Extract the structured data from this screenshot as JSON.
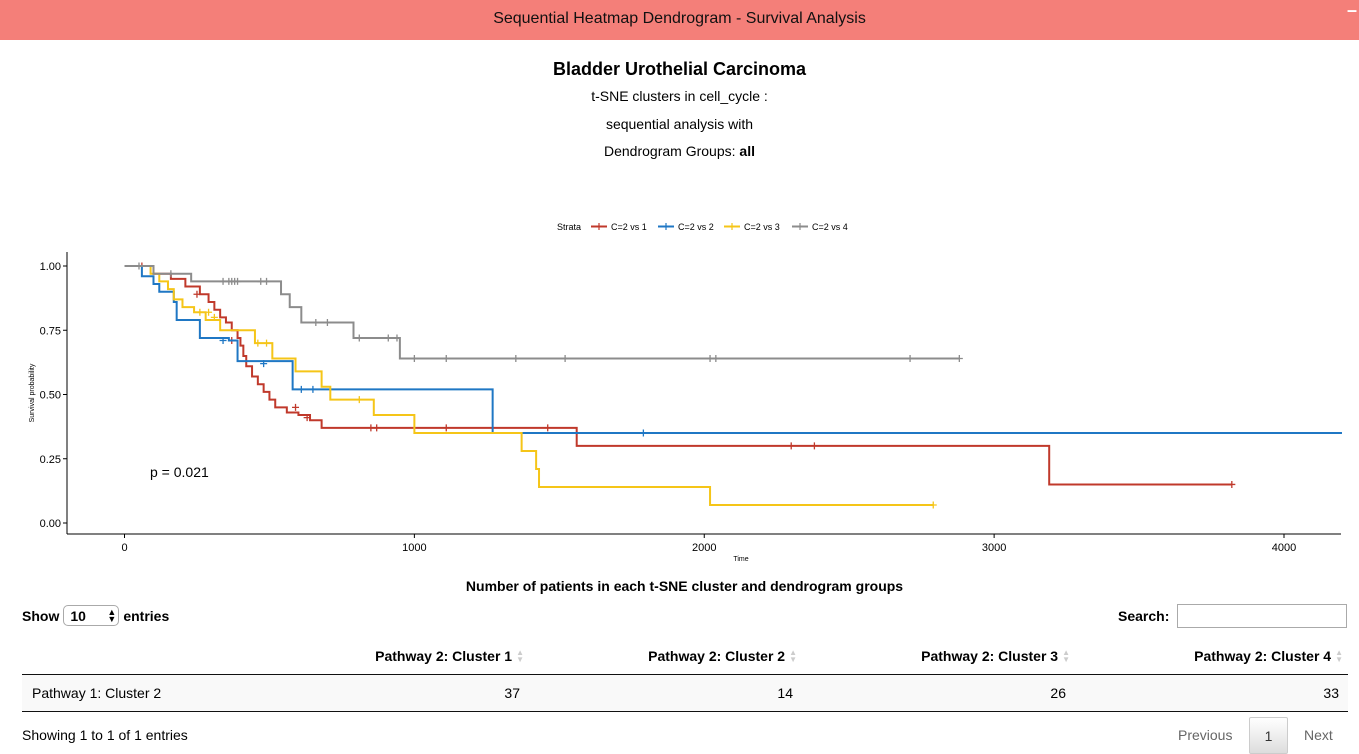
{
  "header": {
    "title": "Sequential Heatmap Dendrogram - Survival Analysis",
    "minimize_symbol": "–"
  },
  "headings": {
    "main": "Bladder Urothelial Carcinoma",
    "line1": "t-SNE clusters in cell_cycle :",
    "line2": "sequential analysis with",
    "line3_prefix": "Dendrogram Groups: ",
    "line3_bold": "all"
  },
  "chart_data": {
    "type": "line",
    "title": "",
    "xlabel": "Time",
    "ylabel": "Survival probability",
    "xlim": [
      -200,
      4200
    ],
    "ylim": [
      0,
      1
    ],
    "xticks": [
      0,
      1000,
      2000,
      3000,
      4000
    ],
    "yticks": [
      0.0,
      0.25,
      0.5,
      0.75,
      1.0
    ],
    "ytick_labels": [
      "0.00",
      "0.25",
      "0.50",
      "0.75",
      "1.00"
    ],
    "legend_title": "Strata",
    "legend_position": "top",
    "grid": false,
    "annotation": "p = 0.021",
    "series": [
      {
        "name": "C=2 vs 1",
        "color": "#c0392b",
        "steps": [
          [
            0,
            1.0
          ],
          [
            100,
            0.97
          ],
          [
            160,
            0.95
          ],
          [
            210,
            0.92
          ],
          [
            260,
            0.89
          ],
          [
            290,
            0.86
          ],
          [
            310,
            0.83
          ],
          [
            330,
            0.8
          ],
          [
            350,
            0.78
          ],
          [
            370,
            0.75
          ],
          [
            390,
            0.72
          ],
          [
            400,
            0.69
          ],
          [
            410,
            0.65
          ],
          [
            420,
            0.61
          ],
          [
            440,
            0.57
          ],
          [
            460,
            0.54
          ],
          [
            480,
            0.51
          ],
          [
            500,
            0.48
          ],
          [
            520,
            0.45
          ],
          [
            560,
            0.43
          ],
          [
            600,
            0.42
          ],
          [
            640,
            0.4
          ],
          [
            680,
            0.37
          ],
          [
            1560,
            0.3
          ],
          [
            3190,
            0.15
          ],
          [
            3820,
            0.15
          ]
        ],
        "censors": [
          [
            60,
            1.0
          ],
          [
            250,
            0.89
          ],
          [
            370,
            0.71
          ],
          [
            590,
            0.45
          ],
          [
            630,
            0.41
          ],
          [
            850,
            0.37
          ],
          [
            870,
            0.37
          ],
          [
            1110,
            0.37
          ],
          [
            1460,
            0.37
          ],
          [
            2300,
            0.3
          ],
          [
            2380,
            0.3
          ],
          [
            3820,
            0.15
          ]
        ]
      },
      {
        "name": "C=2 vs 2",
        "color": "#1f77c4",
        "steps": [
          [
            0,
            1.0
          ],
          [
            60,
            0.96
          ],
          [
            100,
            0.93
          ],
          [
            120,
            0.9
          ],
          [
            170,
            0.86
          ],
          [
            180,
            0.79
          ],
          [
            260,
            0.72
          ],
          [
            360,
            0.71
          ],
          [
            390,
            0.63
          ],
          [
            580,
            0.52
          ],
          [
            1270,
            0.35
          ],
          [
            4200,
            0.35
          ]
        ],
        "censors": [
          [
            340,
            0.71
          ],
          [
            480,
            0.62
          ],
          [
            610,
            0.52
          ],
          [
            650,
            0.52
          ],
          [
            1790,
            0.35
          ]
        ]
      },
      {
        "name": "C=2 vs 3",
        "color": "#f5c518",
        "steps": [
          [
            0,
            1.0
          ],
          [
            90,
            0.97
          ],
          [
            120,
            0.94
          ],
          [
            150,
            0.91
          ],
          [
            170,
            0.87
          ],
          [
            200,
            0.84
          ],
          [
            240,
            0.82
          ],
          [
            280,
            0.79
          ],
          [
            330,
            0.75
          ],
          [
            450,
            0.7
          ],
          [
            510,
            0.64
          ],
          [
            590,
            0.59
          ],
          [
            680,
            0.53
          ],
          [
            710,
            0.48
          ],
          [
            860,
            0.42
          ],
          [
            1000,
            0.35
          ],
          [
            1370,
            0.28
          ],
          [
            1420,
            0.21
          ],
          [
            1430,
            0.14
          ],
          [
            2020,
            0.07
          ],
          [
            2790,
            0.07
          ]
        ],
        "censors": [
          [
            260,
            0.82
          ],
          [
            290,
            0.82
          ],
          [
            310,
            0.8
          ],
          [
            460,
            0.7
          ],
          [
            490,
            0.7
          ],
          [
            810,
            0.48
          ],
          [
            2790,
            0.07
          ]
        ]
      },
      {
        "name": "C=2 vs 4",
        "color": "#8c8c8c",
        "steps": [
          [
            0,
            1.0
          ],
          [
            100,
            0.97
          ],
          [
            230,
            0.94
          ],
          [
            540,
            0.89
          ],
          [
            570,
            0.84
          ],
          [
            610,
            0.78
          ],
          [
            790,
            0.72
          ],
          [
            950,
            0.64
          ],
          [
            2880,
            0.64
          ]
        ],
        "censors": [
          [
            50,
            1.0
          ],
          [
            160,
            0.97
          ],
          [
            340,
            0.94
          ],
          [
            360,
            0.94
          ],
          [
            370,
            0.94
          ],
          [
            380,
            0.94
          ],
          [
            390,
            0.94
          ],
          [
            470,
            0.94
          ],
          [
            490,
            0.94
          ],
          [
            660,
            0.78
          ],
          [
            700,
            0.78
          ],
          [
            810,
            0.72
          ],
          [
            910,
            0.72
          ],
          [
            940,
            0.72
          ],
          [
            1000,
            0.64
          ],
          [
            1110,
            0.64
          ],
          [
            1350,
            0.64
          ],
          [
            1520,
            0.64
          ],
          [
            2020,
            0.64
          ],
          [
            2040,
            0.64
          ],
          [
            2710,
            0.64
          ],
          [
            2880,
            0.64
          ]
        ]
      }
    ]
  },
  "table": {
    "title": "Number of patients in each t-SNE cluster and dendrogram groups",
    "show_label": "Show",
    "entries_label": "entries",
    "page_length": "10",
    "search_label": "Search:",
    "search_value": "",
    "columns": [
      "",
      "Pathway 2: Cluster 1",
      "Pathway 2: Cluster 2",
      "Pathway 2: Cluster 3",
      "Pathway 2: Cluster 4"
    ],
    "rows": [
      [
        "Pathway 1: Cluster 2",
        "37",
        "14",
        "26",
        "33"
      ]
    ],
    "info": "Showing 1 to 1 of 1 entries",
    "pagination": {
      "previous": "Previous",
      "current": "1",
      "next": "Next"
    }
  }
}
